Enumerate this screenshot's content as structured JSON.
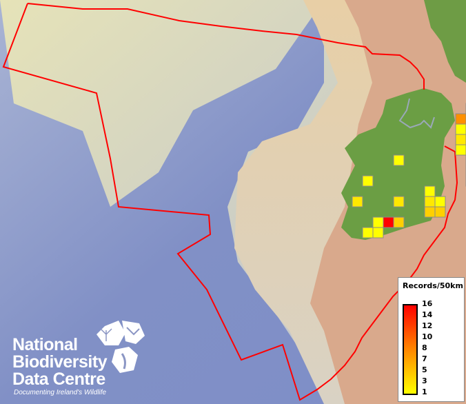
{
  "legend": {
    "title": "Records/50km",
    "ticks": [
      "16",
      "14",
      "12",
      "10",
      "8",
      "7",
      "5",
      "3",
      "1"
    ],
    "colors": {
      "max": "#ff0000",
      "mid": "#ff8000",
      "min": "#ffff00"
    }
  },
  "logo": {
    "line1": "National",
    "line2": "Biodiversity",
    "line3": "Data Centre",
    "tagline": "Documenting Ireland's Wildlife"
  },
  "boundary_color": "#ff0000",
  "cells_note_colors": {
    "1": "#ffff00",
    "2": "#ffee00",
    "3": "#ffd000",
    "5": "#ffb000",
    "8": "#ff9000",
    "10": "#ff7000",
    "16": "#ff0000"
  },
  "grid_cells": [
    {
      "row": 0,
      "col": 8,
      "records": 1
    },
    {
      "row": 0,
      "col": 9,
      "records": 2
    },
    {
      "row": 1,
      "col": 7,
      "records": 8
    },
    {
      "row": 1,
      "col": 8,
      "records": 2
    },
    {
      "row": 1,
      "col": 9,
      "records": 8
    },
    {
      "row": 2,
      "col": 7,
      "records": 1
    },
    {
      "row": 3,
      "col": 7,
      "records": 2
    },
    {
      "row": 3,
      "col": 8,
      "records": 8
    },
    {
      "row": 4,
      "col": 7,
      "records": 1
    },
    {
      "row": 5,
      "col": 1,
      "records": 1
    },
    {
      "row": 5,
      "col": 8,
      "records": 5
    },
    {
      "row": 6,
      "col": 8,
      "records": 10
    },
    {
      "row": 7,
      "col": -2,
      "records": 1
    },
    {
      "row": 7,
      "col": 8,
      "records": 3
    },
    {
      "row": 8,
      "col": 4,
      "records": 1
    },
    {
      "row": 9,
      "col": -3,
      "records": 2
    },
    {
      "row": 9,
      "col": 1,
      "records": 2
    },
    {
      "row": 9,
      "col": 4,
      "records": 2
    },
    {
      "row": 9,
      "col": 5,
      "records": 1
    },
    {
      "row": 10,
      "col": 4,
      "records": 3
    },
    {
      "row": 10,
      "col": 5,
      "records": 3
    },
    {
      "row": 11,
      "col": -1,
      "records": 1
    },
    {
      "row": 11,
      "col": 0,
      "records": 16
    },
    {
      "row": 11,
      "col": 1,
      "records": 3
    },
    {
      "row": 12,
      "col": -2,
      "records": 1
    },
    {
      "row": 12,
      "col": -1,
      "records": 1
    }
  ]
}
